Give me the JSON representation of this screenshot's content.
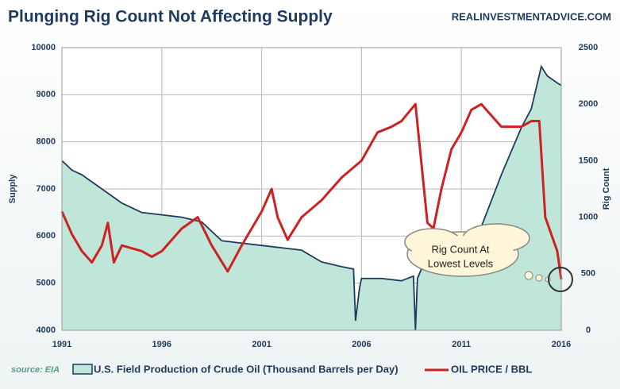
{
  "chart_data": {
    "type": "area-line",
    "title": "Plunging Rig Count Not Affecting Supply",
    "subtitle": "REALINVESTMENTADVICE.COM",
    "source": "source: EIA",
    "ylabel": "Supply",
    "y2label": "Rig Count",
    "annotation": [
      "Rig Count At",
      "Lowest Levels"
    ],
    "xlim": [
      1991,
      2016
    ],
    "xticks": [
      1991,
      1996,
      2001,
      2006,
      2011,
      2016
    ],
    "ylim": [
      4000,
      10000
    ],
    "yticks": [
      4000,
      5000,
      6000,
      7000,
      8000,
      9000,
      10000
    ],
    "y2lim": [
      0,
      2500
    ],
    "y2ticks": [
      0,
      500,
      1000,
      1500,
      2000,
      2500
    ],
    "grid": true,
    "series": [
      {
        "name": "U.S. Field Production of Crude Oil (Thousand Barrels per Day)",
        "color": "#1f3a5f",
        "fill": "#bfe6d8",
        "kind": "area",
        "x": [
          1991,
          1991.5,
          1992,
          1993,
          1994,
          1995,
          1996,
          1997,
          1998,
          1999,
          2000,
          2001,
          2002,
          2003,
          2004,
          2005,
          2005.6,
          2005.7,
          2005.9,
          2006,
          2007,
          2008,
          2008.6,
          2008.7,
          2008.8,
          2009,
          2010,
          2011,
          2012,
          2013,
          2014,
          2014.5,
          2015,
          2015.3,
          2015.8,
          2016
        ],
        "values": [
          7600,
          7400,
          7300,
          7000,
          6700,
          6500,
          6450,
          6400,
          6300,
          5900,
          5850,
          5800,
          5750,
          5700,
          5450,
          5350,
          5300,
          4200,
          4900,
          5100,
          5100,
          5050,
          5150,
          4000,
          5100,
          5300,
          5450,
          5600,
          6200,
          7300,
          8300,
          8700,
          9600,
          9400,
          9250,
          9200
        ]
      },
      {
        "name": "OIL PRICE / BBL",
        "color": "#cc2222",
        "kind": "line",
        "axis": "y2",
        "x": [
          1991,
          1991.5,
          1992,
          1992.5,
          1993,
          1993.3,
          1993.6,
          1994,
          1995,
          1995.5,
          1996,
          1997,
          1997.8,
          1998.5,
          1999.3,
          2000,
          2001,
          2001.5,
          2001.8,
          2002.3,
          2003,
          2004,
          2005,
          2006,
          2006.8,
          2007.5,
          2008,
          2008.7,
          2009.3,
          2009.6,
          2010,
          2010.5,
          2011,
          2011.5,
          2012,
          2013,
          2014,
          2014.5,
          2014.9,
          2015.2,
          2015.5,
          2015.8,
          2016
        ],
        "values": [
          1050,
          850,
          700,
          600,
          750,
          950,
          600,
          750,
          700,
          650,
          700,
          900,
          1000,
          750,
          520,
          750,
          1050,
          1250,
          1000,
          800,
          1000,
          1150,
          1350,
          1500,
          1750,
          1800,
          1850,
          2000,
          950,
          900,
          1250,
          1600,
          1750,
          1950,
          2000,
          1800,
          1800,
          1850,
          1850,
          1000,
          850,
          700,
          450
        ]
      }
    ]
  }
}
